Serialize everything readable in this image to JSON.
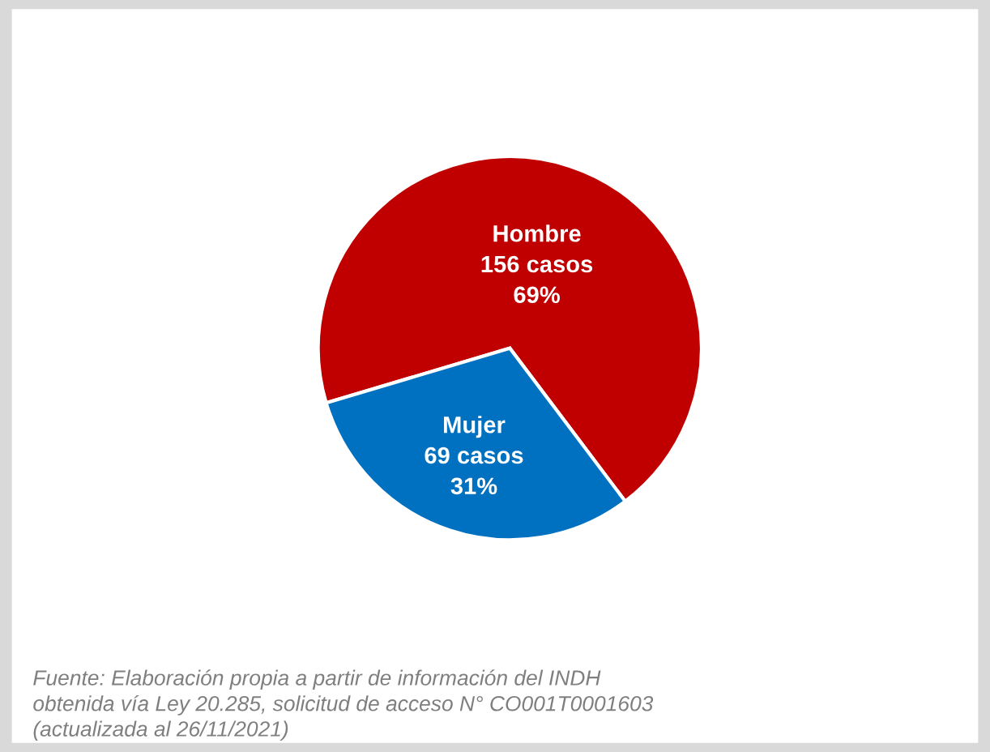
{
  "chart_data": {
    "type": "pie",
    "categories": [
      "Hombre",
      "Mujer"
    ],
    "values": [
      156,
      69
    ],
    "value_labels": [
      "156 casos\n69%",
      "69 casos\n31%"
    ],
    "colors": [
      "#c00000",
      "#0070c0"
    ],
    "annotations": [
      "Fuente: Elaboración propia a partir de información del INDH\nobtenida vía Ley 20.285, solicitud de acceso N° CO001T0001603\n(actualizada al 26/11/2021)"
    ],
    "legend": false
  }
}
